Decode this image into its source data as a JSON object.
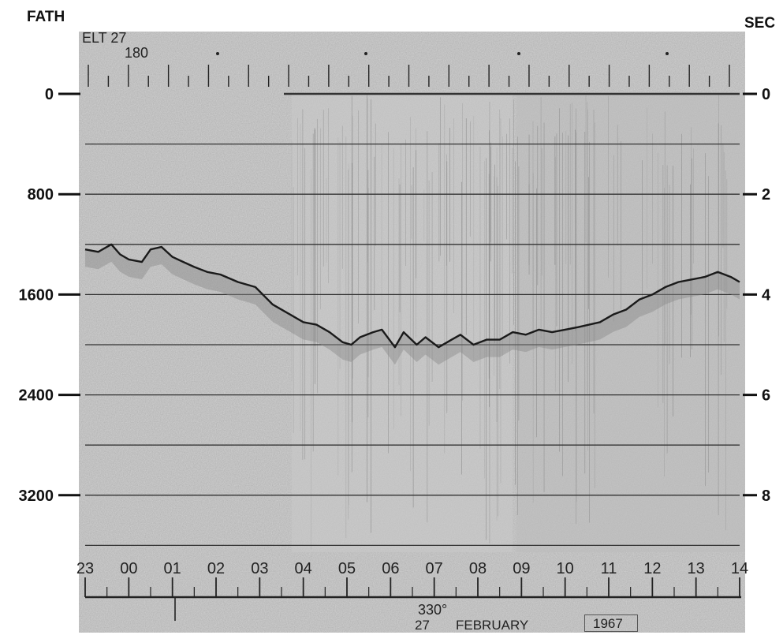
{
  "chart_data": {
    "type": "line",
    "title": "",
    "left_axis_label": "FATH",
    "right_axis_label": "SEC",
    "line_id": "ELT 27",
    "line_number": "180",
    "heading": "330°",
    "date": {
      "day": "27",
      "month": "FEBRUARY",
      "year": "1967"
    },
    "left_ticks": [
      {
        "value": 0,
        "label": "0"
      },
      {
        "value": 800,
        "label": "800"
      },
      {
        "value": 1600,
        "label": "1600"
      },
      {
        "value": 2400,
        "label": "2400"
      },
      {
        "value": 3200,
        "label": "3200"
      }
    ],
    "right_ticks": [
      {
        "value": 0,
        "label": "0"
      },
      {
        "value": 2,
        "label": "2"
      },
      {
        "value": 4,
        "label": "4"
      },
      {
        "value": 6,
        "label": "6"
      },
      {
        "value": 8,
        "label": "8"
      }
    ],
    "y_range_seconds": [
      0,
      9
    ],
    "gridlines_seconds": [
      0,
      1,
      2,
      3,
      4,
      5,
      6,
      7,
      8,
      9
    ],
    "x_hour_labels": [
      "23",
      "00",
      "01",
      "02",
      "03",
      "04",
      "05",
      "06",
      "07",
      "08",
      "09",
      "10",
      "11",
      "12",
      "13",
      "14"
    ],
    "x_range_hours": [
      0,
      15
    ],
    "series": [
      {
        "x_hours": [
          0.0,
          0.3,
          0.6,
          0.8,
          1.0,
          1.3,
          1.5,
          1.75,
          2.0,
          2.25,
          2.5,
          2.8,
          3.1,
          3.5,
          3.9,
          4.3,
          4.7,
          5.0,
          5.3,
          5.6,
          5.9,
          6.1,
          6.3,
          6.6,
          6.8,
          7.1,
          7.3,
          7.6,
          7.8,
          8.1,
          8.4,
          8.6,
          8.9,
          9.2,
          9.5,
          9.8,
          10.1,
          10.4,
          10.7,
          11.0,
          11.3,
          11.55,
          11.8,
          12.1,
          12.4,
          12.7,
          13.0,
          13.3,
          13.6,
          13.9,
          14.2,
          14.5,
          14.8,
          15.0
        ],
        "y_seconds": [
          3.1,
          3.15,
          3.0,
          3.2,
          3.3,
          3.35,
          3.1,
          3.05,
          3.25,
          3.35,
          3.45,
          3.55,
          3.6,
          3.75,
          3.85,
          4.2,
          4.4,
          4.55,
          4.6,
          4.75,
          4.95,
          5.0,
          4.85,
          4.75,
          4.7,
          5.05,
          4.75,
          5.0,
          4.85,
          5.05,
          4.9,
          4.8,
          5.0,
          4.9,
          4.9,
          4.75,
          4.8,
          4.7,
          4.75,
          4.7,
          4.65,
          4.6,
          4.55,
          4.4,
          4.3,
          4.1,
          4.0,
          3.85,
          3.75,
          3.7,
          3.65,
          3.55,
          3.65,
          3.75
        ]
      }
    ],
    "grid": true
  }
}
